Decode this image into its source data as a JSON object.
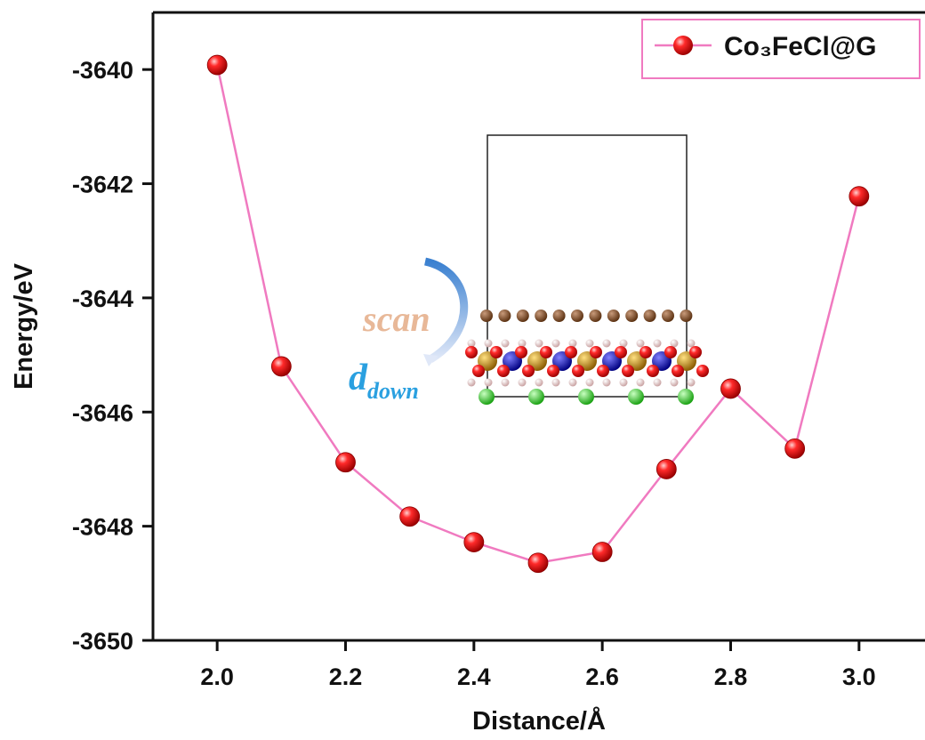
{
  "chart_data": {
    "type": "line",
    "x_label": "Distance/Å",
    "y_label": "Energy/eV",
    "x": [
      2.0,
      2.1,
      2.2,
      2.3,
      2.4,
      2.5,
      2.6,
      2.7,
      2.8,
      2.9,
      3.0
    ],
    "series": [
      {
        "name": "Co₃FeCl@G",
        "color": "#f07ac0",
        "marker_color": "#e8101a",
        "values": [
          -3639.92,
          -3645.2,
          -3646.88,
          -3647.83,
          -3648.28,
          -3648.64,
          -3648.45,
          -3647.0,
          -3645.59,
          -3646.64,
          -3642.22
        ]
      }
    ],
    "xlim": [
      1.9,
      3.1
    ],
    "xticks": [
      {
        "value": 2.0,
        "label": "2.0"
      },
      2.2,
      2.4,
      2.6,
      2.8,
      {
        "value": 3.0,
        "label": "3.0"
      }
    ],
    "ylim": [
      -3650,
      -3639
    ],
    "yticks": [
      -3650,
      -3648,
      -3646,
      -3644,
      -3642,
      -3640
    ],
    "legend": "upper right",
    "annotations": [
      {
        "text": "scan"
      },
      {
        "text": "d",
        "subscript": "down"
      }
    ]
  }
}
